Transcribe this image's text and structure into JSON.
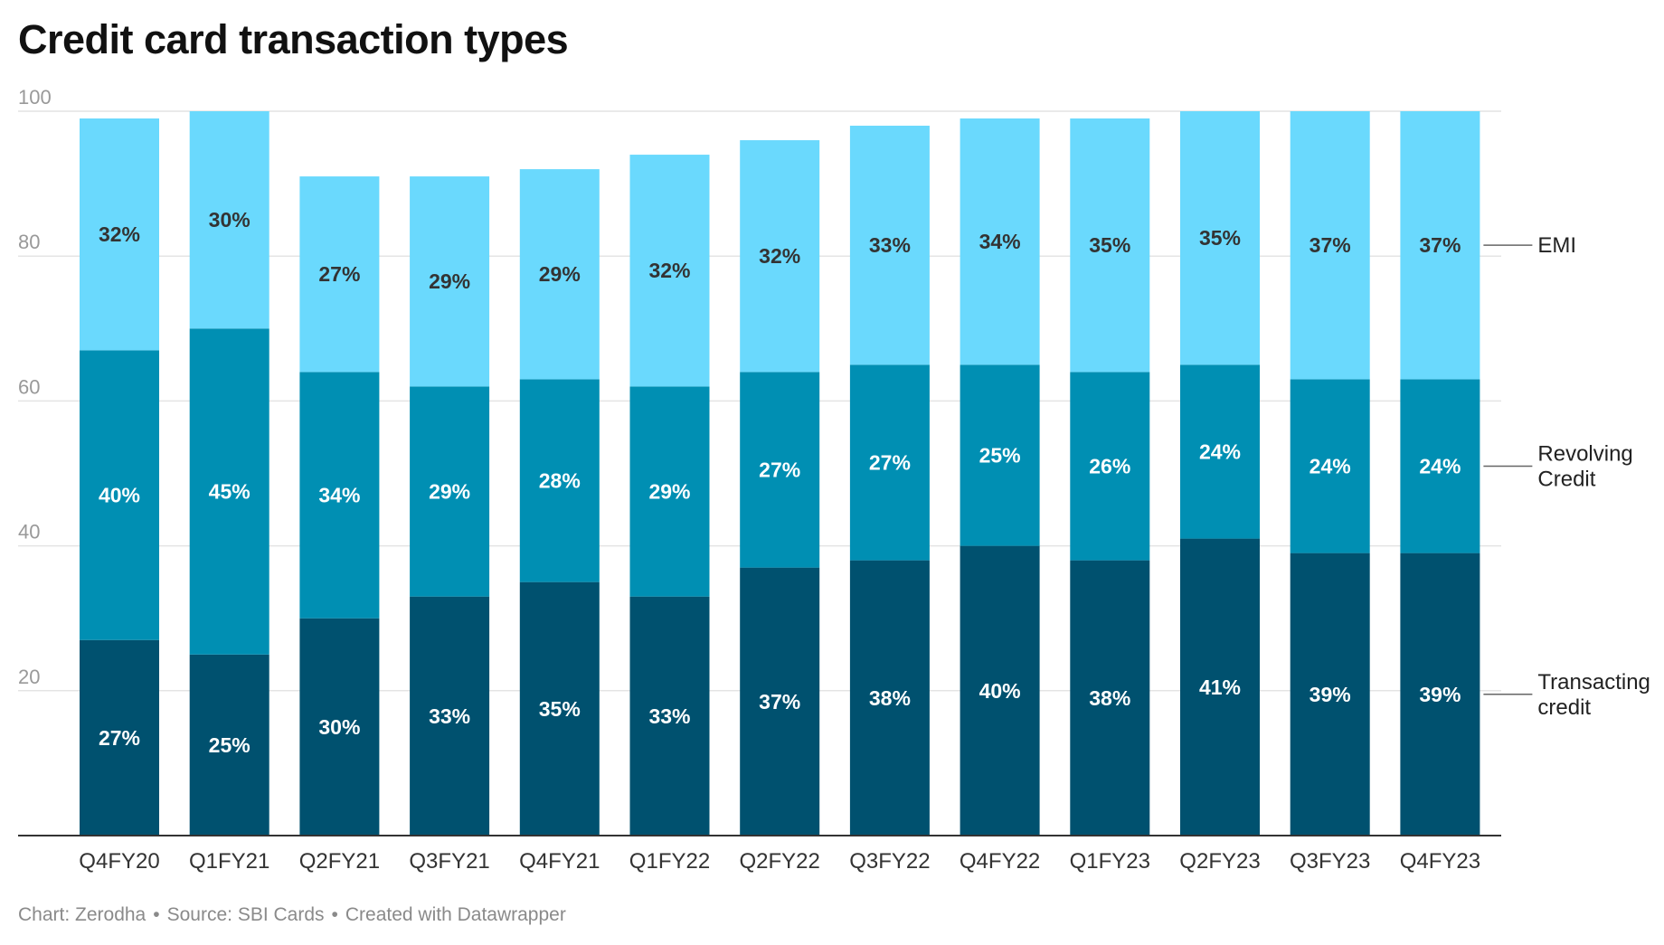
{
  "title": "Credit card transaction types",
  "footer": {
    "chart_by": "Chart: Zerodha",
    "source": "Source: SBI Cards",
    "created": "Created with Datawrapper",
    "separator": "•"
  },
  "colors": {
    "transacting": "#00516f",
    "revolving": "#008fb3",
    "emi": "#6ad9fd",
    "grid": "#e4e4e4",
    "axis": "#333333"
  },
  "chart_data": {
    "type": "bar",
    "stacked": true,
    "title": "Credit card transaction types",
    "ylim": [
      0,
      100
    ],
    "yticks": [
      "20",
      "40",
      "60",
      "80",
      "100"
    ],
    "categories": [
      "Q4FY20",
      "Q1FY21",
      "Q2FY21",
      "Q3FY21",
      "Q4FY21",
      "Q1FY22",
      "Q2FY22",
      "Q3FY22",
      "Q4FY22",
      "Q1FY23",
      "Q2FY23",
      "Q3FY23",
      "Q4FY23"
    ],
    "series": [
      {
        "name": "Transacting credit",
        "name_lines": [
          "Transacting",
          "credit"
        ],
        "color": "#00516f",
        "label_color": "#ffffff",
        "values": [
          27,
          25,
          30,
          33,
          35,
          33,
          37,
          38,
          40,
          38,
          41,
          39,
          39
        ],
        "labels": [
          "27%",
          "25%",
          "30%",
          "33%",
          "35%",
          "33%",
          "37%",
          "38%",
          "40%",
          "38%",
          "41%",
          "39%",
          "39%"
        ]
      },
      {
        "name": "Revolving Credit",
        "name_lines": [
          "Revolving",
          "Credit"
        ],
        "color": "#008fb3",
        "label_color": "#ffffff",
        "values": [
          40,
          45,
          34,
          29,
          28,
          29,
          27,
          27,
          25,
          26,
          24,
          24,
          24
        ],
        "labels": [
          "40%",
          "45%",
          "34%",
          "29%",
          "28%",
          "29%",
          "27%",
          "27%",
          "25%",
          "26%",
          "24%",
          "24%",
          "24%"
        ]
      },
      {
        "name": "EMI",
        "name_lines": [
          "EMI"
        ],
        "color": "#6ad9fd",
        "label_color": "#333333",
        "values": [
          32,
          30,
          27,
          29,
          29,
          32,
          32,
          33,
          34,
          35,
          35,
          37,
          37
        ],
        "labels": [
          "32%",
          "30%",
          "27%",
          "29%",
          "29%",
          "32%",
          "32%",
          "33%",
          "34%",
          "35%",
          "35%",
          "37%",
          "37%"
        ]
      }
    ],
    "legend": "right, inline labels"
  }
}
